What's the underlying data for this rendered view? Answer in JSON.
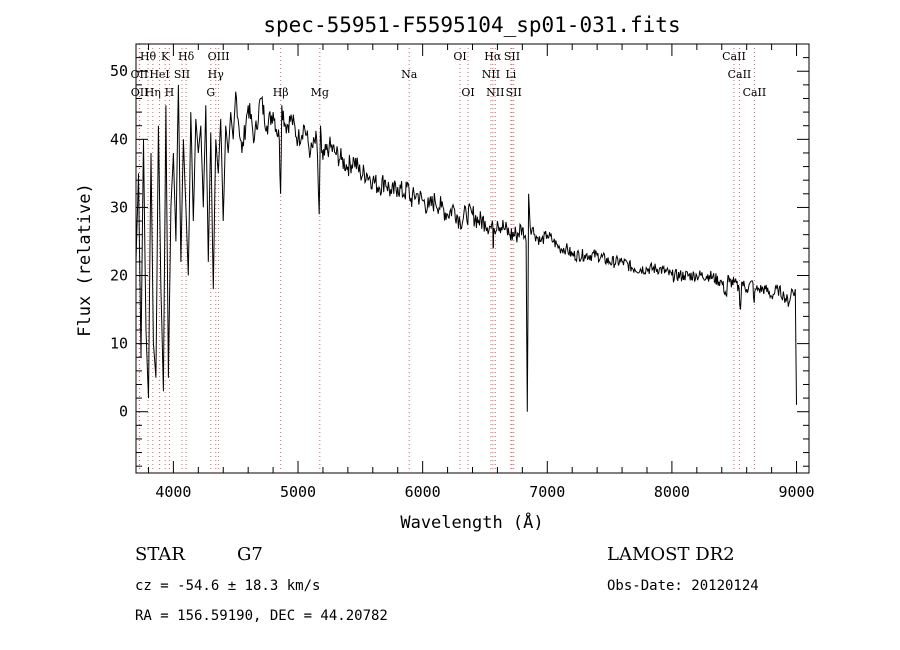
{
  "chart_data": {
    "type": "line",
    "title": "spec-55951-F5595104_sp01-031.fits",
    "xlabel": "Wavelength (Å)",
    "ylabel": "Flux (relative)",
    "xlim": [
      3700,
      9100
    ],
    "ylim": [
      -9,
      54
    ],
    "xticks": [
      4000,
      5000,
      6000,
      7000,
      8000,
      9000
    ],
    "yticks": [
      0,
      10,
      20,
      30,
      40,
      50
    ],
    "grid": false,
    "series": [
      {
        "x": [
          3700,
          3720,
          3740,
          3760,
          3780,
          3800,
          3820,
          3840,
          3860,
          3880,
          3900,
          3920,
          3940,
          3960,
          3980,
          4000,
          4020,
          4040,
          4060,
          4080,
          4100,
          4120,
          4140,
          4160,
          4180,
          4200,
          4220,
          4240,
          4260,
          4280,
          4300,
          4320,
          4340,
          4360,
          4380,
          4400,
          4420,
          4440,
          4460,
          4480,
          4500,
          4550,
          4600,
          4650,
          4700,
          4750,
          4800,
          4850,
          4860,
          4870,
          4900,
          4950,
          5000,
          5050,
          5100,
          5150,
          5170,
          5180,
          5190,
          5200,
          5250,
          5300,
          5350,
          5400,
          5450,
          5500,
          5550,
          5600,
          5650,
          5700,
          5750,
          5800,
          5850,
          5890,
          5900,
          5950,
          6000,
          6050,
          6100,
          6150,
          6200,
          6250,
          6300,
          6350,
          6400,
          6450,
          6500,
          6550,
          6560,
          6565,
          6570,
          6600,
          6650,
          6700,
          6750,
          6800,
          6830,
          6840,
          6850,
          6870,
          6880,
          6900,
          6950,
          7000,
          7050,
          7100,
          7150,
          7200,
          7300,
          7400,
          7500,
          7600,
          7700,
          7800,
          7900,
          8000,
          8100,
          8200,
          8300,
          8400,
          8440,
          8450,
          8460,
          8500,
          8540,
          8550,
          8560,
          8600,
          8650,
          8660,
          8670,
          8700,
          8750,
          8800,
          8850,
          8900,
          8940,
          8960,
          8980,
          8990,
          9000
        ],
        "y": [
          22,
          35,
          8,
          40,
          12,
          2,
          38,
          10,
          5,
          42,
          18,
          3,
          45,
          5,
          30,
          38,
          25,
          48,
          22,
          40,
          30,
          20,
          44,
          28,
          43,
          38,
          42,
          30,
          45,
          22,
          41,
          18,
          40,
          35,
          43,
          28,
          42,
          38,
          44,
          40,
          47,
          38,
          45,
          40,
          46,
          42,
          44,
          40,
          32,
          45,
          42,
          43,
          40,
          42,
          38,
          40,
          29,
          42,
          38,
          37,
          39,
          38,
          37,
          36,
          37,
          35,
          35,
          34,
          33,
          34,
          32,
          33,
          32,
          33,
          31,
          32,
          31,
          30,
          31,
          30,
          29,
          30,
          28,
          29,
          29,
          28,
          28,
          27,
          28,
          24,
          27,
          28,
          27,
          26,
          26,
          27,
          25,
          0,
          32,
          26,
          27,
          26,
          25,
          26,
          25,
          24,
          24,
          23,
          23,
          23,
          22,
          22,
          21,
          21,
          21,
          20,
          20,
          20,
          20,
          19,
          17,
          20,
          19,
          19,
          18,
          15,
          19,
          18,
          19,
          16,
          18,
          18,
          18,
          17,
          18,
          17,
          16,
          18,
          17,
          18,
          1
        ]
      }
    ],
    "lines": [
      "Hθ",
      "K",
      "Hδ",
      "OIII",
      "OII",
      "HeI",
      "SII",
      "Hγ",
      "OII",
      "Hη",
      "H",
      "G",
      "Hβ",
      "Mg",
      "Na",
      "OI",
      "OI",
      "Hα",
      "SII",
      "NII",
      "Li",
      "NII",
      "SII",
      "CaII",
      "CaII",
      "CaII"
    ]
  },
  "info": {
    "object_type": "STAR",
    "spectral_class": "G7",
    "survey": "LAMOST DR2",
    "cz": "cz = -54.6 ± 18.3 km/s",
    "obs_date": "Obs-Date: 20120124",
    "coords": "RA = 156.59190, DEC =  44.20782"
  },
  "colors": {
    "line_marker": "#e06060",
    "spectrum": "#000000"
  }
}
